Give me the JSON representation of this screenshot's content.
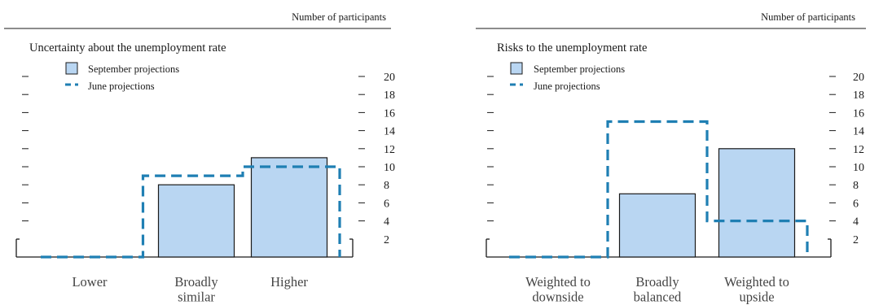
{
  "colors": {
    "bar_fill": "#b9d6f2",
    "bar_stroke": "#1a1a1a",
    "june_line": "#1f7fb3",
    "axis": "#1a1a1a"
  },
  "chart_data": [
    {
      "type": "bar",
      "title": "Uncertainty about the unemployment rate",
      "units_label": "Number of participants",
      "categories": [
        [
          "Lower"
        ],
        [
          "Broadly",
          "similar"
        ],
        [
          "Higher"
        ]
      ],
      "series": [
        {
          "name": "September projections",
          "style": "bar",
          "values": [
            0,
            8,
            11
          ]
        },
        {
          "name": "June projections",
          "style": "dashed-step",
          "values": [
            0,
            9,
            10
          ]
        }
      ],
      "yticks": [
        2,
        4,
        6,
        8,
        10,
        12,
        14,
        16,
        18,
        20
      ],
      "ylim": [
        0,
        20
      ],
      "legend_position": "top-left",
      "grid": false
    },
    {
      "type": "bar",
      "title": "Risks to the unemployment rate",
      "units_label": "Number of participants",
      "categories": [
        [
          "Weighted to",
          "downside"
        ],
        [
          "Broadly",
          "balanced"
        ],
        [
          "Weighted to",
          "upside"
        ]
      ],
      "series": [
        {
          "name": "September projections",
          "style": "bar",
          "values": [
            0,
            7,
            12
          ]
        },
        {
          "name": "June projections",
          "style": "dashed-step",
          "values": [
            0,
            15,
            4
          ]
        }
      ],
      "yticks": [
        2,
        4,
        6,
        8,
        10,
        12,
        14,
        16,
        18,
        20
      ],
      "ylim": [
        0,
        20
      ],
      "legend_position": "top-left",
      "grid": false
    }
  ]
}
